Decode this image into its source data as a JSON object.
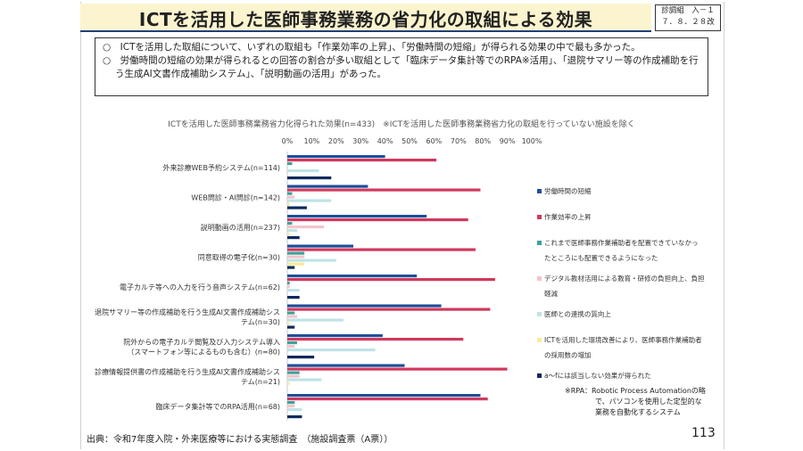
{
  "header": {
    "title": "ICTを活用した医師事務業務の省力化の取組による効果",
    "doc_id_line1": "診調組　入－１",
    "doc_id_line2": "７．８．２８改"
  },
  "summary": {
    "bullet1": "○　ICTを活用した取組について、いずれの取組も「作業効率の上昇」、「労働時間の短縮」が得られる効果の中で最も多かった。",
    "bullet2": "○　労働時間の短縮の効果が得られるとの回答の割合が多い取組として「臨床データ集計等でのRPA※活用」、「退院サマリー等の作成補助を行う生成AI文書作成補助システム」、「説明動画の活用」があった。"
  },
  "footer": {
    "source": "出典：令和7年度入院・外来医療等における実態調査　（施設調査票（A票））",
    "page_number": "113",
    "rpa_note_line1": "※RPA：Robotic Process Automationの略",
    "rpa_note_line2": "で、パソコンを使用した定型的な",
    "rpa_note_line3": "業務を自動化するシステム"
  },
  "chart_data": {
    "type": "bar",
    "orientation": "horizontal",
    "title": "ICTを活用した医師事務業務省力化得られた効果(n=433)　※ICTを活用した医師事務業務省力化の取組を行っていない施設を除く",
    "xlim": [
      0,
      100
    ],
    "ticks": [
      "0%",
      "10%",
      "20%",
      "30%",
      "40%",
      "50%",
      "60%",
      "70%",
      "80%",
      "90%",
      "100%"
    ],
    "categories": [
      [
        "外来診療WEB予約システム(n=114)"
      ],
      [
        "WEB問診・AI問診(n=142)"
      ],
      [
        "説明動画の活用(n=237)"
      ],
      [
        "同意取得の電子化(n=30)"
      ],
      [
        "電子カルテ等への入力を行う音声システム(n=62)"
      ],
      [
        "退院サマリー等の作成補助を行う生成AI文書作成補助シス",
        "テム(n=30)"
      ],
      [
        "院外からの電子カルテ閲覧及び入力システム導入",
        "（スマートフォン等によるものも含む）(n=80)"
      ],
      [
        "診療情報提供書の作成補助を行う生成AI文書作成補助シス",
        "テム(n=21)"
      ],
      [
        "臨床データ集計等でのRPA活用(n=68)"
      ]
    ],
    "series": [
      {
        "name": "労働時間の短縮",
        "color": "#1f4e9a",
        "values": [
          40,
          33,
          57,
          27,
          53,
          63,
          39,
          48,
          79
        ]
      },
      {
        "name": "作業効率の上昇",
        "color": "#d0395d",
        "values": [
          61,
          79,
          74,
          77,
          85,
          83,
          72,
          90,
          82
        ]
      },
      {
        "name": "これまで医師事務作業補助者を配置できていなかったところにも配置できるようになった",
        "color": "#3aa39b",
        "values": [
          2,
          2,
          2,
          7,
          1,
          3,
          4,
          5,
          3
        ]
      },
      {
        "name": "デジタル教材活用による教育・研修の負担向上、負担軽減",
        "color": "#f4c4cc",
        "values": [
          0,
          3,
          15,
          7,
          1,
          4,
          3,
          5,
          3
        ]
      },
      {
        "name": "医師との連携の質向上",
        "color": "#bfe3e6",
        "values": [
          13,
          18,
          4,
          20,
          5,
          23,
          36,
          14,
          6
        ]
      },
      {
        "name": "ICTを活用した環境改善により、医師事務作業補助者の採用数の増加",
        "color": "#f6ec9a",
        "values": [
          0,
          1,
          1,
          7,
          0,
          1,
          0,
          1,
          0
        ]
      },
      {
        "name": "a～fには該当しない効果が得られた",
        "color": "#0e2a5c",
        "values": [
          18,
          8,
          5,
          3,
          5,
          3,
          11,
          0,
          6
        ]
      }
    ],
    "legend": [
      [
        "労働時間の短縮"
      ],
      [
        "作業効率の上昇"
      ],
      [
        "これまで医師事務作業補助者を配置できていなかっ",
        "たところにも配置できるようになった"
      ],
      [
        "デジタル教材活用による教育・研修の負担向上、負担",
        "軽減"
      ],
      [
        "医師との連携の質向上"
      ],
      [
        "ICTを活用した環境改善により、医師事務作業補助者",
        "の採用数の増加"
      ],
      [
        "a～fには該当しない効果が得られた"
      ]
    ],
    "legend_position": "right"
  }
}
